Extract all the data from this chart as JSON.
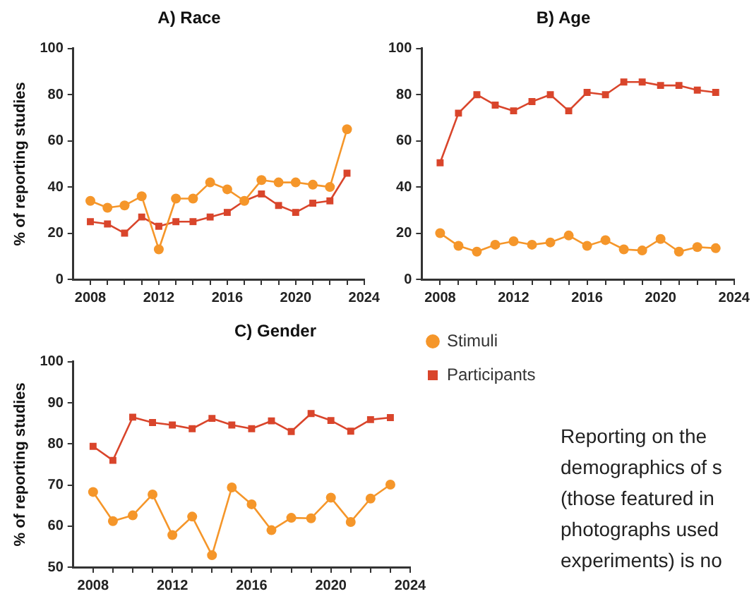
{
  "chart_data": [
    {
      "type": "line",
      "title": "A) Race",
      "ylabel": "% of reporting studies",
      "x": [
        2008,
        2009,
        2010,
        2011,
        2012,
        2013,
        2014,
        2015,
        2016,
        2017,
        2018,
        2019,
        2020,
        2021,
        2022,
        2023
      ],
      "series": [
        {
          "color": "#f5962a",
          "marker": "circle",
          "values": [
            34,
            31,
            32,
            36,
            13,
            35,
            35,
            42,
            39,
            34,
            43,
            42,
            42,
            41,
            40,
            65
          ]
        },
        {
          "color": "#d9452b",
          "marker": "square",
          "values": [
            25,
            24,
            20,
            27,
            23,
            25,
            25,
            27,
            29,
            34,
            37,
            32,
            29,
            33,
            34,
            46
          ]
        }
      ],
      "xlim": [
        2007,
        2024
      ],
      "xticks": [
        2008,
        {
          "value": 2009,
          "label": null
        },
        {
          "value": 2010,
          "label": null
        },
        {
          "value": 2011,
          "label": null
        },
        2012,
        {
          "value": 2013,
          "label": null
        },
        {
          "value": 2014,
          "label": null
        },
        {
          "value": 2015,
          "label": null
        },
        2016,
        {
          "value": 2017,
          "label": null
        },
        {
          "value": 2018,
          "label": null
        },
        {
          "value": 2019,
          "label": null
        },
        2020,
        {
          "value": 2021,
          "label": null
        },
        {
          "value": 2022,
          "label": null
        },
        {
          "value": 2023,
          "label": null
        },
        2024
      ],
      "ylim": [
        0,
        100
      ],
      "yticks": [
        0,
        20,
        40,
        60,
        80,
        100
      ],
      "legend": false
    },
    {
      "type": "line",
      "title": "B) Age",
      "x": [
        2008,
        2009,
        2010,
        2011,
        2012,
        2013,
        2014,
        2015,
        2016,
        2017,
        2018,
        2019,
        2020,
        2021,
        2022,
        2023
      ],
      "series": [
        {
          "color": "#f5962a",
          "marker": "circle",
          "values": [
            20,
            14.5,
            12,
            15,
            16.5,
            15,
            16,
            19,
            14.5,
            17,
            13,
            12.5,
            17.5,
            12,
            14,
            13.5
          ]
        },
        {
          "color": "#d9452b",
          "marker": "square",
          "values": [
            50.5,
            72,
            80,
            75.5,
            73,
            77,
            80,
            73,
            81,
            80,
            85.5,
            85.5,
            84,
            84,
            82,
            81
          ]
        }
      ],
      "xlim": [
        2007,
        2024
      ],
      "xticks": [
        2008,
        {
          "value": 2009,
          "label": null
        },
        {
          "value": 2010,
          "label": null
        },
        {
          "value": 2011,
          "label": null
        },
        2012,
        {
          "value": 2013,
          "label": null
        },
        {
          "value": 2014,
          "label": null
        },
        {
          "value": 2015,
          "label": null
        },
        2016,
        {
          "value": 2017,
          "label": null
        },
        {
          "value": 2018,
          "label": null
        },
        {
          "value": 2019,
          "label": null
        },
        2020,
        {
          "value": 2021,
          "label": null
        },
        {
          "value": 2022,
          "label": null
        },
        {
          "value": 2023,
          "label": null
        },
        2024
      ],
      "ylim": [
        0,
        100
      ],
      "yticks": [
        0,
        20,
        40,
        60,
        80,
        100
      ],
      "legend": false
    },
    {
      "type": "line",
      "title": "C) Gender",
      "ylabel": "% of reporting studies",
      "x": [
        2008,
        2009,
        2010,
        2011,
        2012,
        2013,
        2014,
        2015,
        2016,
        2017,
        2018,
        2019,
        2020,
        2021,
        2022,
        2023
      ],
      "series": [
        {
          "name": "Stimuli",
          "color": "#f5962a",
          "marker": "circle",
          "values": [
            68.3,
            61.2,
            62.6,
            67.7,
            57.8,
            62.3,
            52.9,
            69.4,
            65.3,
            59,
            62,
            61.9,
            66.9,
            61,
            66.7,
            70.1
          ]
        },
        {
          "name": "Participants",
          "color": "#d9452b",
          "marker": "square",
          "values": [
            79.4,
            76,
            86.5,
            85.2,
            84.6,
            83.7,
            86.2,
            84.6,
            83.7,
            85.6,
            83,
            87.4,
            85.7,
            83.1,
            85.9,
            86.4
          ]
        }
      ],
      "xlim": [
        2007,
        2024
      ],
      "xticks": [
        2008,
        {
          "value": 2009,
          "label": null
        },
        {
          "value": 2010,
          "label": null
        },
        {
          "value": 2011,
          "label": null
        },
        2012,
        {
          "value": 2013,
          "label": null
        },
        {
          "value": 2014,
          "label": null
        },
        {
          "value": 2015,
          "label": null
        },
        2016,
        {
          "value": 2017,
          "label": null
        },
        {
          "value": 2018,
          "label": null
        },
        {
          "value": 2019,
          "label": null
        },
        2020,
        {
          "value": 2021,
          "label": null
        },
        {
          "value": 2022,
          "label": null
        },
        {
          "value": 2023,
          "label": null
        },
        2024
      ],
      "ylim": [
        50,
        100
      ],
      "yticks": [
        50,
        60,
        70,
        80,
        90,
        100
      ],
      "legend": "right",
      "annotations": [
        "Reporting on the demographics of s (those featured in photographs used experiments) is no"
      ]
    }
  ]
}
